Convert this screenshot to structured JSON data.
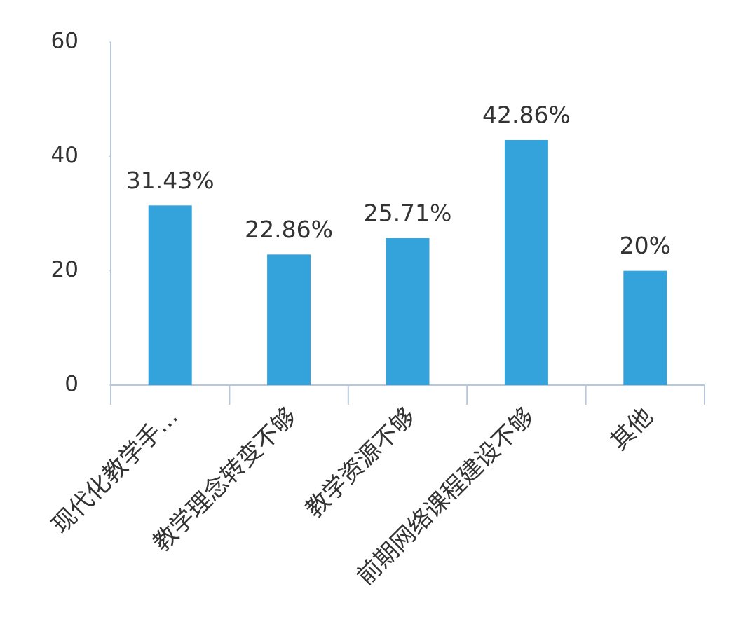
{
  "chart_data": {
    "type": "bar",
    "categories": [
      "现代化教学手...",
      "教学理念转变不够",
      "教学资源不够",
      "前期网络课程建设不够",
      "其他"
    ],
    "values": [
      31.43,
      22.86,
      25.71,
      42.86,
      20
    ],
    "value_labels": [
      "31.43%",
      "22.86%",
      "25.71%",
      "42.86%",
      "20%"
    ],
    "color": "#35a3db",
    "ylim": [
      0,
      60
    ],
    "yticks": [
      0,
      20,
      40,
      60
    ]
  }
}
